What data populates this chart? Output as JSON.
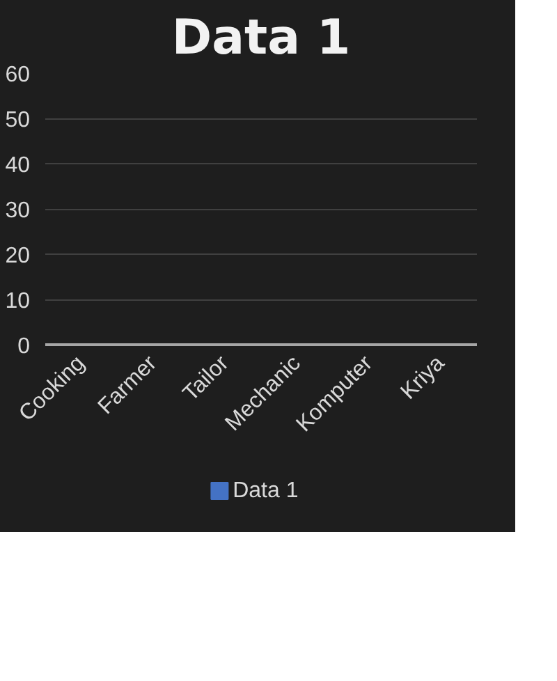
{
  "chart_data": {
    "type": "bar",
    "title": "Data 1",
    "categories": [
      "Cooking",
      "Farmer",
      "Tailor",
      "Mechanic",
      "Komputer",
      "Kriya"
    ],
    "series": [
      {
        "name": "Data 1",
        "color": "#4472c4",
        "values": [
          0,
          0,
          0,
          0,
          0,
          0
        ]
      }
    ],
    "ylim": [
      0,
      60
    ],
    "yticks": [
      0,
      10,
      20,
      30,
      40,
      50,
      60
    ],
    "grid": "y",
    "legend": "bottom"
  }
}
